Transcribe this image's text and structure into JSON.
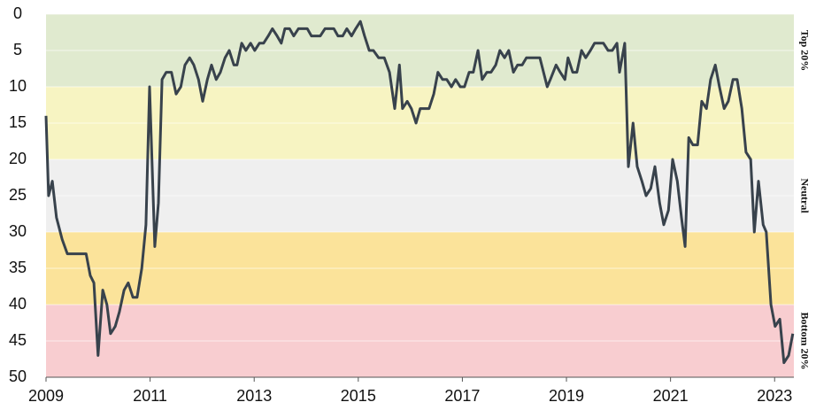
{
  "chart_data": {
    "type": "line",
    "x": [
      2009.0,
      2009.05,
      2009.12,
      2009.2,
      2009.31,
      2009.41,
      2009.56,
      2009.77,
      2009.85,
      2009.92,
      2010.0,
      2010.09,
      2010.17,
      2010.24,
      2010.33,
      2010.41,
      2010.5,
      2010.58,
      2010.67,
      2010.75,
      2010.84,
      2010.92,
      2010.99,
      2011.09,
      2011.16,
      2011.23,
      2011.31,
      2011.41,
      2011.5,
      2011.59,
      2011.67,
      2011.76,
      2011.84,
      2011.93,
      2012.01,
      2012.1,
      2012.18,
      2012.27,
      2012.35,
      2012.44,
      2012.52,
      2012.61,
      2012.67,
      2012.76,
      2012.84,
      2012.93,
      2013.01,
      2013.1,
      2013.18,
      2013.27,
      2013.35,
      2013.44,
      2013.52,
      2013.59,
      2013.68,
      2013.76,
      2013.85,
      2013.93,
      2014.02,
      2014.1,
      2014.19,
      2014.27,
      2014.36,
      2014.44,
      2014.53,
      2014.61,
      2014.7,
      2014.78,
      2014.87,
      2014.95,
      2015.04,
      2015.12,
      2015.21,
      2015.29,
      2015.39,
      2015.5,
      2015.6,
      2015.7,
      2015.79,
      2015.85,
      2015.94,
      2016.02,
      2016.11,
      2016.19,
      2016.36,
      2016.45,
      2016.53,
      2016.62,
      2016.7,
      2016.79,
      2016.87,
      2016.96,
      2017.04,
      2017.13,
      2017.21,
      2017.3,
      2017.38,
      2017.47,
      2017.55,
      2017.64,
      2017.72,
      2017.81,
      2017.89,
      2017.98,
      2018.06,
      2018.15,
      2018.23,
      2018.4,
      2018.49,
      2018.63,
      2018.69,
      2018.8,
      2018.88,
      2018.97,
      2019.03,
      2019.12,
      2019.2,
      2019.29,
      2019.37,
      2019.46,
      2019.54,
      2019.71,
      2019.8,
      2019.88,
      2019.97,
      2020.02,
      2020.12,
      2020.19,
      2020.28,
      2020.36,
      2020.45,
      2020.53,
      2020.62,
      2020.7,
      2020.79,
      2020.87,
      2020.96,
      2021.04,
      2021.13,
      2021.21,
      2021.28,
      2021.35,
      2021.43,
      2021.52,
      2021.6,
      2021.69,
      2021.77,
      2021.86,
      2021.94,
      2022.03,
      2022.11,
      2022.2,
      2022.28,
      2022.37,
      2022.45,
      2022.54,
      2022.61,
      2022.69,
      2022.78,
      2022.84,
      2022.93,
      2023.01,
      2023.1,
      2023.18,
      2023.27,
      2023.35
    ],
    "series": [
      {
        "color": "#38424c",
        "values": [
          14,
          25,
          23,
          28,
          31,
          33,
          33,
          33,
          36,
          37,
          47,
          38,
          40,
          44,
          43,
          41,
          38,
          37,
          39,
          39,
          35,
          29,
          10,
          32,
          26,
          9,
          8,
          8,
          11,
          10,
          7,
          6,
          7,
          9,
          12,
          9,
          7,
          9,
          8,
          6,
          5,
          7,
          7,
          4,
          5,
          4,
          5,
          4,
          4,
          3,
          2,
          3,
          4,
          2,
          2,
          3,
          2,
          2,
          2,
          3,
          3,
          3,
          2,
          2,
          2,
          3,
          3,
          2,
          3,
          2,
          1,
          3,
          5,
          5,
          6,
          6,
          8,
          13,
          7,
          13,
          12,
          13,
          15,
          13,
          13,
          11,
          8,
          9,
          9,
          10,
          9,
          10,
          10,
          8,
          8,
          5,
          9,
          8,
          8,
          7,
          5,
          6,
          5,
          8,
          7,
          7,
          6,
          6,
          6,
          10,
          9,
          7,
          8,
          9,
          6,
          8,
          8,
          5,
          6,
          5,
          4,
          4,
          5,
          5,
          4,
          8,
          4,
          21,
          15,
          21,
          23,
          25,
          24,
          21,
          26,
          29,
          27,
          20,
          23,
          28,
          32,
          17,
          18,
          18,
          12,
          13,
          9,
          7,
          10,
          13,
          12,
          9,
          9,
          13,
          19,
          20,
          30,
          23,
          29,
          30,
          40,
          43,
          42,
          48,
          47,
          44
        ]
      }
    ],
    "xlim": [
      2009,
      2023.37
    ],
    "xticks": [
      2009,
      2011,
      2013,
      2015,
      2017,
      2019,
      2021,
      2023
    ],
    "ylim": [
      0,
      50
    ],
    "y_inverted": true,
    "yticks": [
      0,
      5,
      10,
      15,
      20,
      25,
      30,
      35,
      40,
      45,
      50
    ],
    "grid": true,
    "bands": [
      {
        "from": 0,
        "to": 10,
        "color": "#e0eacf",
        "label": "Top 20%"
      },
      {
        "from": 10,
        "to": 20,
        "color": "#f7f4c2"
      },
      {
        "from": 20,
        "to": 30,
        "color": "#efefef",
        "label": "Neutral"
      },
      {
        "from": 30,
        "to": 40,
        "color": "#fbe39a"
      },
      {
        "from": 40,
        "to": 50,
        "color": "#f8cdd0",
        "label": "Bottom 20%"
      }
    ]
  }
}
